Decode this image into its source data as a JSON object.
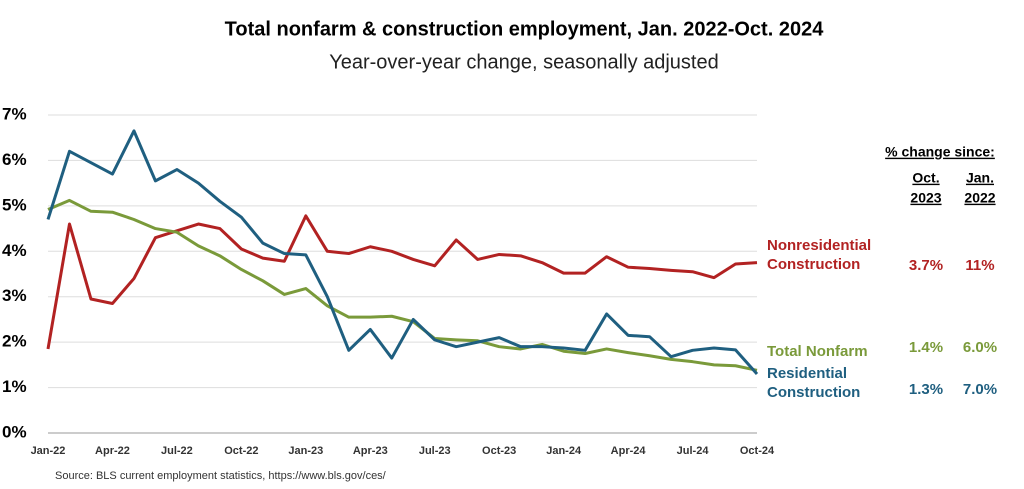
{
  "chart_data": {
    "type": "line",
    "title": "Total nonfarm & construction employment, Jan. 2022-Oct. 2024",
    "subtitle": "Year-over-year change, seasonally adjusted",
    "source": "Source: BLS current employment statistics, https://www.bls.gov/ces/",
    "categories": [
      "Jan-22",
      null,
      null,
      "Apr-22",
      null,
      null,
      "Jul-22",
      null,
      null,
      "Oct-22",
      null,
      null,
      "Jan-23",
      null,
      null,
      "Apr-23",
      null,
      null,
      "Jul-23",
      null,
      null,
      "Oct-23",
      null,
      null,
      "Jan-24",
      null,
      null,
      "Apr-24",
      null,
      null,
      "Jul-24",
      null,
      null,
      "Oct-24"
    ],
    "ylim": [
      0,
      7
    ],
    "yticks": [
      {
        "value": 0,
        "label": "0%"
      },
      {
        "value": 1,
        "label": "1%"
      },
      {
        "value": 2,
        "label": "2%"
      },
      {
        "value": 3,
        "label": "3%"
      },
      {
        "value": 4,
        "label": "4%"
      },
      {
        "value": 5,
        "label": "5%"
      },
      {
        "value": 6,
        "label": "6%"
      },
      {
        "value": 7,
        "label": "7%"
      }
    ],
    "grid": true,
    "summary_title": "% change since:",
    "summary_columns": [
      [
        "Oct.",
        "2023"
      ],
      [
        "Jan.",
        "2022"
      ]
    ],
    "series": [
      {
        "name": "Nonresidential Construction",
        "color": "#b22222",
        "values": [
          1.85,
          4.6,
          2.95,
          2.85,
          3.4,
          4.3,
          4.45,
          4.6,
          4.5,
          4.05,
          3.85,
          3.78,
          4.78,
          4.0,
          3.95,
          4.1,
          4.0,
          3.82,
          3.68,
          4.25,
          3.82,
          3.93,
          3.9,
          3.75,
          3.52,
          3.52,
          3.88,
          3.65,
          3.62,
          3.58,
          3.55,
          3.42,
          3.72,
          3.75
        ],
        "change": [
          3.7,
          11
        ],
        "change_labels": [
          "3.7%",
          "11%"
        ]
      },
      {
        "name": "Total Nonfarm",
        "color": "#7a9a3a",
        "values": [
          4.92,
          5.12,
          4.88,
          4.86,
          4.7,
          4.5,
          4.42,
          4.12,
          3.9,
          3.6,
          3.35,
          3.05,
          3.18,
          2.8,
          2.55,
          2.55,
          2.57,
          2.45,
          2.08,
          2.05,
          2.03,
          1.9,
          1.85,
          1.95,
          1.8,
          1.75,
          1.85,
          1.77,
          1.7,
          1.62,
          1.57,
          1.5,
          1.48,
          1.38
        ],
        "change": [
          1.4,
          6.0
        ],
        "change_labels": [
          "1.4%",
          "6.0%"
        ]
      },
      {
        "name": "Residential Construction",
        "color": "#1f5f80",
        "values": [
          4.7,
          6.2,
          5.95,
          5.7,
          6.65,
          5.55,
          5.8,
          5.5,
          5.1,
          4.75,
          4.18,
          3.95,
          3.92,
          3.0,
          1.82,
          2.28,
          1.65,
          2.5,
          2.05,
          1.9,
          2.0,
          2.1,
          1.9,
          1.9,
          1.87,
          1.82,
          2.62,
          2.15,
          2.12,
          1.68,
          1.82,
          1.87,
          1.83,
          1.3
        ],
        "change": [
          1.3,
          7.0
        ],
        "change_labels": [
          "1.3%",
          "7.0%"
        ]
      }
    ]
  }
}
